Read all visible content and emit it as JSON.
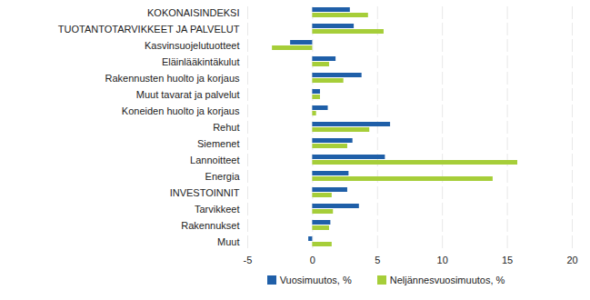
{
  "chart_data": {
    "type": "bar",
    "orientation": "horizontal",
    "categories": [
      "KOKONAISINDEKSI",
      "TUOTANTOTARVIKKEET JA PALVELUT",
      "Kasvinsuojelutuotteet",
      "Eläinlääkintäkulut",
      "Rakennusten huolto ja korjaus",
      "Muut tavarat ja palvelut",
      "Koneiden huolto ja korjaus",
      "Rehut",
      "Siemenet",
      "Lannoitteet",
      "Energia",
      "INVESTOINNIT",
      "Tarvikkeet",
      "Rakennukset",
      "Muut"
    ],
    "series": [
      {
        "name": "Vuosimuutos, %",
        "color": "#1f5fa8",
        "values": [
          2.9,
          3.2,
          -1.7,
          1.8,
          3.8,
          0.6,
          1.2,
          6.0,
          3.1,
          5.6,
          2.8,
          2.7,
          3.6,
          1.4,
          -0.3
        ]
      },
      {
        "name": "Neljännesvuosimuutos, %",
        "color": "#a6ce39",
        "values": [
          4.3,
          5.5,
          -3.1,
          1.3,
          2.4,
          0.6,
          0.3,
          4.4,
          2.7,
          15.8,
          13.9,
          1.5,
          1.6,
          1.3,
          1.5
        ]
      }
    ],
    "xlim": [
      -5,
      20
    ],
    "xticks": [
      -5,
      0,
      5,
      10,
      15,
      20
    ],
    "grid": true,
    "legend": "bottom"
  }
}
